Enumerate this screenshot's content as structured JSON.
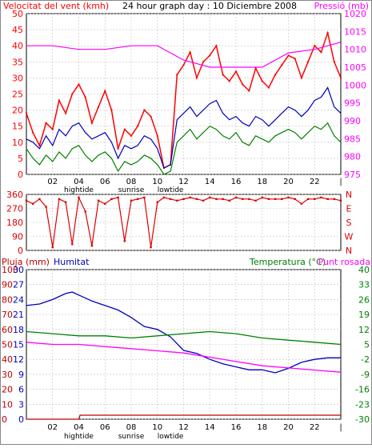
{
  "header": {
    "wind_label": "Velocitat del vent (kmh)",
    "title": "24 hour graph day : 10 Diciembre 2008",
    "pressure_label": "Pressió (mb)"
  },
  "middle_labels": {
    "rain_label": "Pluja (mm)",
    "humidity_label": "Humitat",
    "temperature_label": "Temperatura (°C)",
    "dewpoint_label": "Punt rosada"
  },
  "colors": {
    "wind_gust": "#ff0000",
    "wind_avg": "#c00000",
    "wind_low": "#008000",
    "wind_mid": "#0000c0",
    "pressure": "#ff00ff",
    "direction": "#dd0000",
    "humidity": "#0000c0",
    "temperature": "#008000",
    "dewpoint": "#ff00ff",
    "rain": "#c00000",
    "grid": "#c0c0c0",
    "axis_text": "#000000"
  },
  "time_axis": {
    "ticks": [
      "02",
      "04",
      "06",
      "08",
      "10",
      "12",
      "14",
      "16",
      "18",
      "20",
      "22"
    ],
    "events": [
      {
        "label": "hightide",
        "hour": 4
      },
      {
        "label": "sunrise",
        "hour": 8
      },
      {
        "label": "lowtide",
        "hour": 11
      }
    ]
  },
  "chart_data": [
    {
      "type": "line",
      "name": "wind-pressure",
      "xlim": [
        0,
        24
      ],
      "y_left_ticks": [
        0,
        5,
        10,
        15,
        20,
        25,
        30,
        35,
        40,
        45,
        50
      ],
      "y_left_lim": [
        0,
        50
      ],
      "y_right_ticks": [
        975,
        980,
        985,
        990,
        995,
        1000,
        1005,
        1010,
        1015,
        1020
      ],
      "y_right_lim": [
        975,
        1020
      ],
      "series": [
        {
          "name": "Velocitat del vent (kmh)",
          "axis": "left",
          "color_key": "wind_gust",
          "x": [
            0,
            0.5,
            1,
            1.5,
            2,
            2.5,
            3,
            3.5,
            4,
            4.5,
            5,
            5.5,
            6,
            6.5,
            7,
            7.5,
            8,
            8.5,
            9,
            9.5,
            10,
            10.5,
            11,
            11.5,
            12,
            12.5,
            13,
            13.5,
            14,
            14.5,
            15,
            15.5,
            16,
            16.5,
            17,
            17.5,
            18,
            18.5,
            19,
            19.5,
            20,
            20.5,
            21,
            21.5,
            22,
            22.5,
            23,
            23.5,
            24
          ],
          "values": [
            19,
            13,
            9,
            16,
            14,
            23,
            19,
            25,
            28,
            24,
            16,
            21,
            26,
            20,
            8,
            14,
            12,
            15,
            20,
            18,
            12,
            2,
            3,
            31,
            34,
            38,
            30,
            35,
            37,
            40,
            31,
            29,
            32,
            28,
            26,
            33,
            29,
            27,
            31,
            34,
            37,
            36,
            30,
            35,
            40,
            38,
            44,
            35,
            30
          ]
        },
        {
          "name": "Humitat",
          "axis": "left",
          "color_key": "wind_mid",
          "x": [
            0,
            0.5,
            1,
            1.5,
            2,
            2.5,
            3,
            3.5,
            4,
            4.5,
            5,
            5.5,
            6,
            6.5,
            7,
            7.5,
            8,
            8.5,
            9,
            9.5,
            10,
            10.5,
            11,
            11.5,
            12,
            12.5,
            13,
            13.5,
            14,
            14.5,
            15,
            15.5,
            16,
            16.5,
            17,
            17.5,
            18,
            18.5,
            19,
            19.5,
            20,
            20.5,
            21,
            21.5,
            22,
            22.5,
            23,
            23.5,
            24
          ],
          "values": [
            11,
            10,
            8,
            12,
            9,
            14,
            12,
            15,
            16,
            13,
            11,
            12,
            13,
            10,
            5,
            9,
            8,
            9,
            12,
            11,
            8,
            2,
            3,
            17,
            19,
            21,
            18,
            20,
            22,
            23,
            19,
            17,
            18,
            16,
            15,
            18,
            17,
            15,
            17,
            19,
            21,
            20,
            18,
            20,
            23,
            24,
            27,
            21,
            19
          ]
        },
        {
          "name": "Temperatura",
          "axis": "left",
          "color_key": "wind_low",
          "x": [
            0,
            0.5,
            1,
            1.5,
            2,
            2.5,
            3,
            3.5,
            4,
            4.5,
            5,
            5.5,
            6,
            6.5,
            7,
            7.5,
            8,
            8.5,
            9,
            9.5,
            10,
            10.5,
            11,
            11.5,
            12,
            12.5,
            13,
            13.5,
            14,
            14.5,
            15,
            15.5,
            16,
            16.5,
            17,
            17.5,
            18,
            18.5,
            19,
            19.5,
            20,
            20.5,
            21,
            21.5,
            22,
            22.5,
            23,
            23.5,
            24
          ],
          "values": [
            8,
            5,
            3,
            6,
            4,
            7,
            5,
            8,
            9,
            6,
            4,
            6,
            7,
            5,
            1,
            4,
            3,
            4,
            6,
            5,
            3,
            0,
            1,
            10,
            12,
            14,
            11,
            13,
            15,
            14,
            12,
            11,
            13,
            10,
            9,
            12,
            11,
            10,
            12,
            13,
            14,
            13,
            11,
            13,
            15,
            14,
            16,
            12,
            10
          ]
        },
        {
          "name": "Pressió (mb)",
          "axis": "right",
          "color_key": "pressure",
          "x": [
            0,
            2,
            4,
            6,
            8,
            10,
            12,
            14,
            16,
            18,
            20,
            22,
            24
          ],
          "values": [
            1011,
            1011,
            1010,
            1010,
            1011,
            1011,
            1007,
            1005,
            1005,
            1005,
            1009,
            1010,
            1012
          ]
        }
      ]
    },
    {
      "type": "scatter",
      "name": "wind-direction",
      "xlim": [
        0,
        24
      ],
      "ylim": [
        0,
        360
      ],
      "y_ticks": [
        0,
        90,
        180,
        270,
        360
      ],
      "y_right_labels": [
        "N",
        "W",
        "S",
        "E",
        "N"
      ],
      "series": [
        {
          "name": "direction",
          "color_key": "direction",
          "x": [
            0,
            0.5,
            1,
            1.5,
            2,
            2.5,
            3,
            3.5,
            4,
            4.5,
            5,
            5.5,
            6,
            6.5,
            7,
            7.5,
            8,
            8.5,
            9,
            9.5,
            10,
            10.5,
            11,
            11.5,
            12,
            12.5,
            13,
            13.5,
            14,
            14.5,
            15,
            15.5,
            16,
            16.5,
            17,
            17.5,
            18,
            18.5,
            19,
            19.5,
            20,
            20.5,
            21,
            21.5,
            22,
            22.5,
            23,
            23.5,
            24
          ],
          "values": [
            320,
            300,
            330,
            280,
            20,
            330,
            310,
            40,
            340,
            250,
            30,
            320,
            300,
            330,
            340,
            60,
            320,
            330,
            340,
            20,
            310,
            340,
            330,
            320,
            330,
            340,
            330,
            320,
            340,
            330,
            330,
            320,
            340,
            330,
            330,
            320,
            340,
            330,
            330,
            330,
            340,
            330,
            300,
            330,
            330,
            340,
            330,
            330,
            320
          ]
        }
      ]
    },
    {
      "type": "line",
      "name": "temperature-humidity-rain",
      "xlim": [
        0,
        24
      ],
      "y_left_outer_ticks": [
        0,
        10,
        20,
        30,
        40,
        50,
        60,
        70,
        80,
        90,
        100
      ],
      "y_left_outer_lim": [
        0,
        100
      ],
      "y_left_inner_ticks": [
        0,
        3,
        6,
        9,
        12,
        15,
        18,
        21,
        24,
        27,
        30
      ],
      "y_left_inner_lim": [
        0,
        30
      ],
      "y_right_ticks": [
        -30,
        -23,
        -16,
        -9,
        -2,
        5,
        12,
        19,
        26,
        33,
        40
      ],
      "y_right_lim": [
        -30,
        40
      ],
      "series": [
        {
          "name": "Humitat",
          "axis": "left_outer",
          "color_key": "humidity",
          "x": [
            0,
            1,
            2,
            3,
            3.5,
            4,
            5,
            6,
            7,
            8,
            9,
            10,
            11,
            12,
            13,
            14,
            15,
            16,
            17,
            18,
            19,
            20,
            21,
            22,
            23,
            24
          ],
          "values": [
            76,
            77,
            80,
            84,
            85,
            83,
            79,
            76,
            73,
            68,
            62,
            60,
            55,
            46,
            44,
            40,
            37,
            35,
            33,
            33,
            31,
            34,
            38,
            40,
            41,
            41
          ]
        },
        {
          "name": "Temperatura (°C)",
          "axis": "right",
          "color_key": "temperature",
          "x": [
            0,
            2,
            4,
            6,
            8,
            10,
            12,
            14,
            16,
            18,
            20,
            22,
            24
          ],
          "values": [
            11,
            10,
            9,
            9,
            8,
            9,
            10,
            11,
            10,
            8,
            7,
            6,
            5
          ]
        },
        {
          "name": "Punt rosada",
          "axis": "right",
          "color_key": "dewpoint",
          "x": [
            0,
            2,
            4,
            6,
            8,
            10,
            12,
            14,
            16,
            18,
            20,
            22,
            24
          ],
          "values": [
            6,
            5,
            5,
            4,
            3,
            2,
            1,
            -1,
            -3,
            -5,
            -6,
            -7,
            -8
          ]
        },
        {
          "name": "Pluja (mm)",
          "axis": "left_inner",
          "color_key": "rain",
          "x": [
            0,
            4,
            4.1,
            24
          ],
          "values": [
            0,
            0,
            0.8,
            0.8
          ]
        }
      ]
    }
  ]
}
